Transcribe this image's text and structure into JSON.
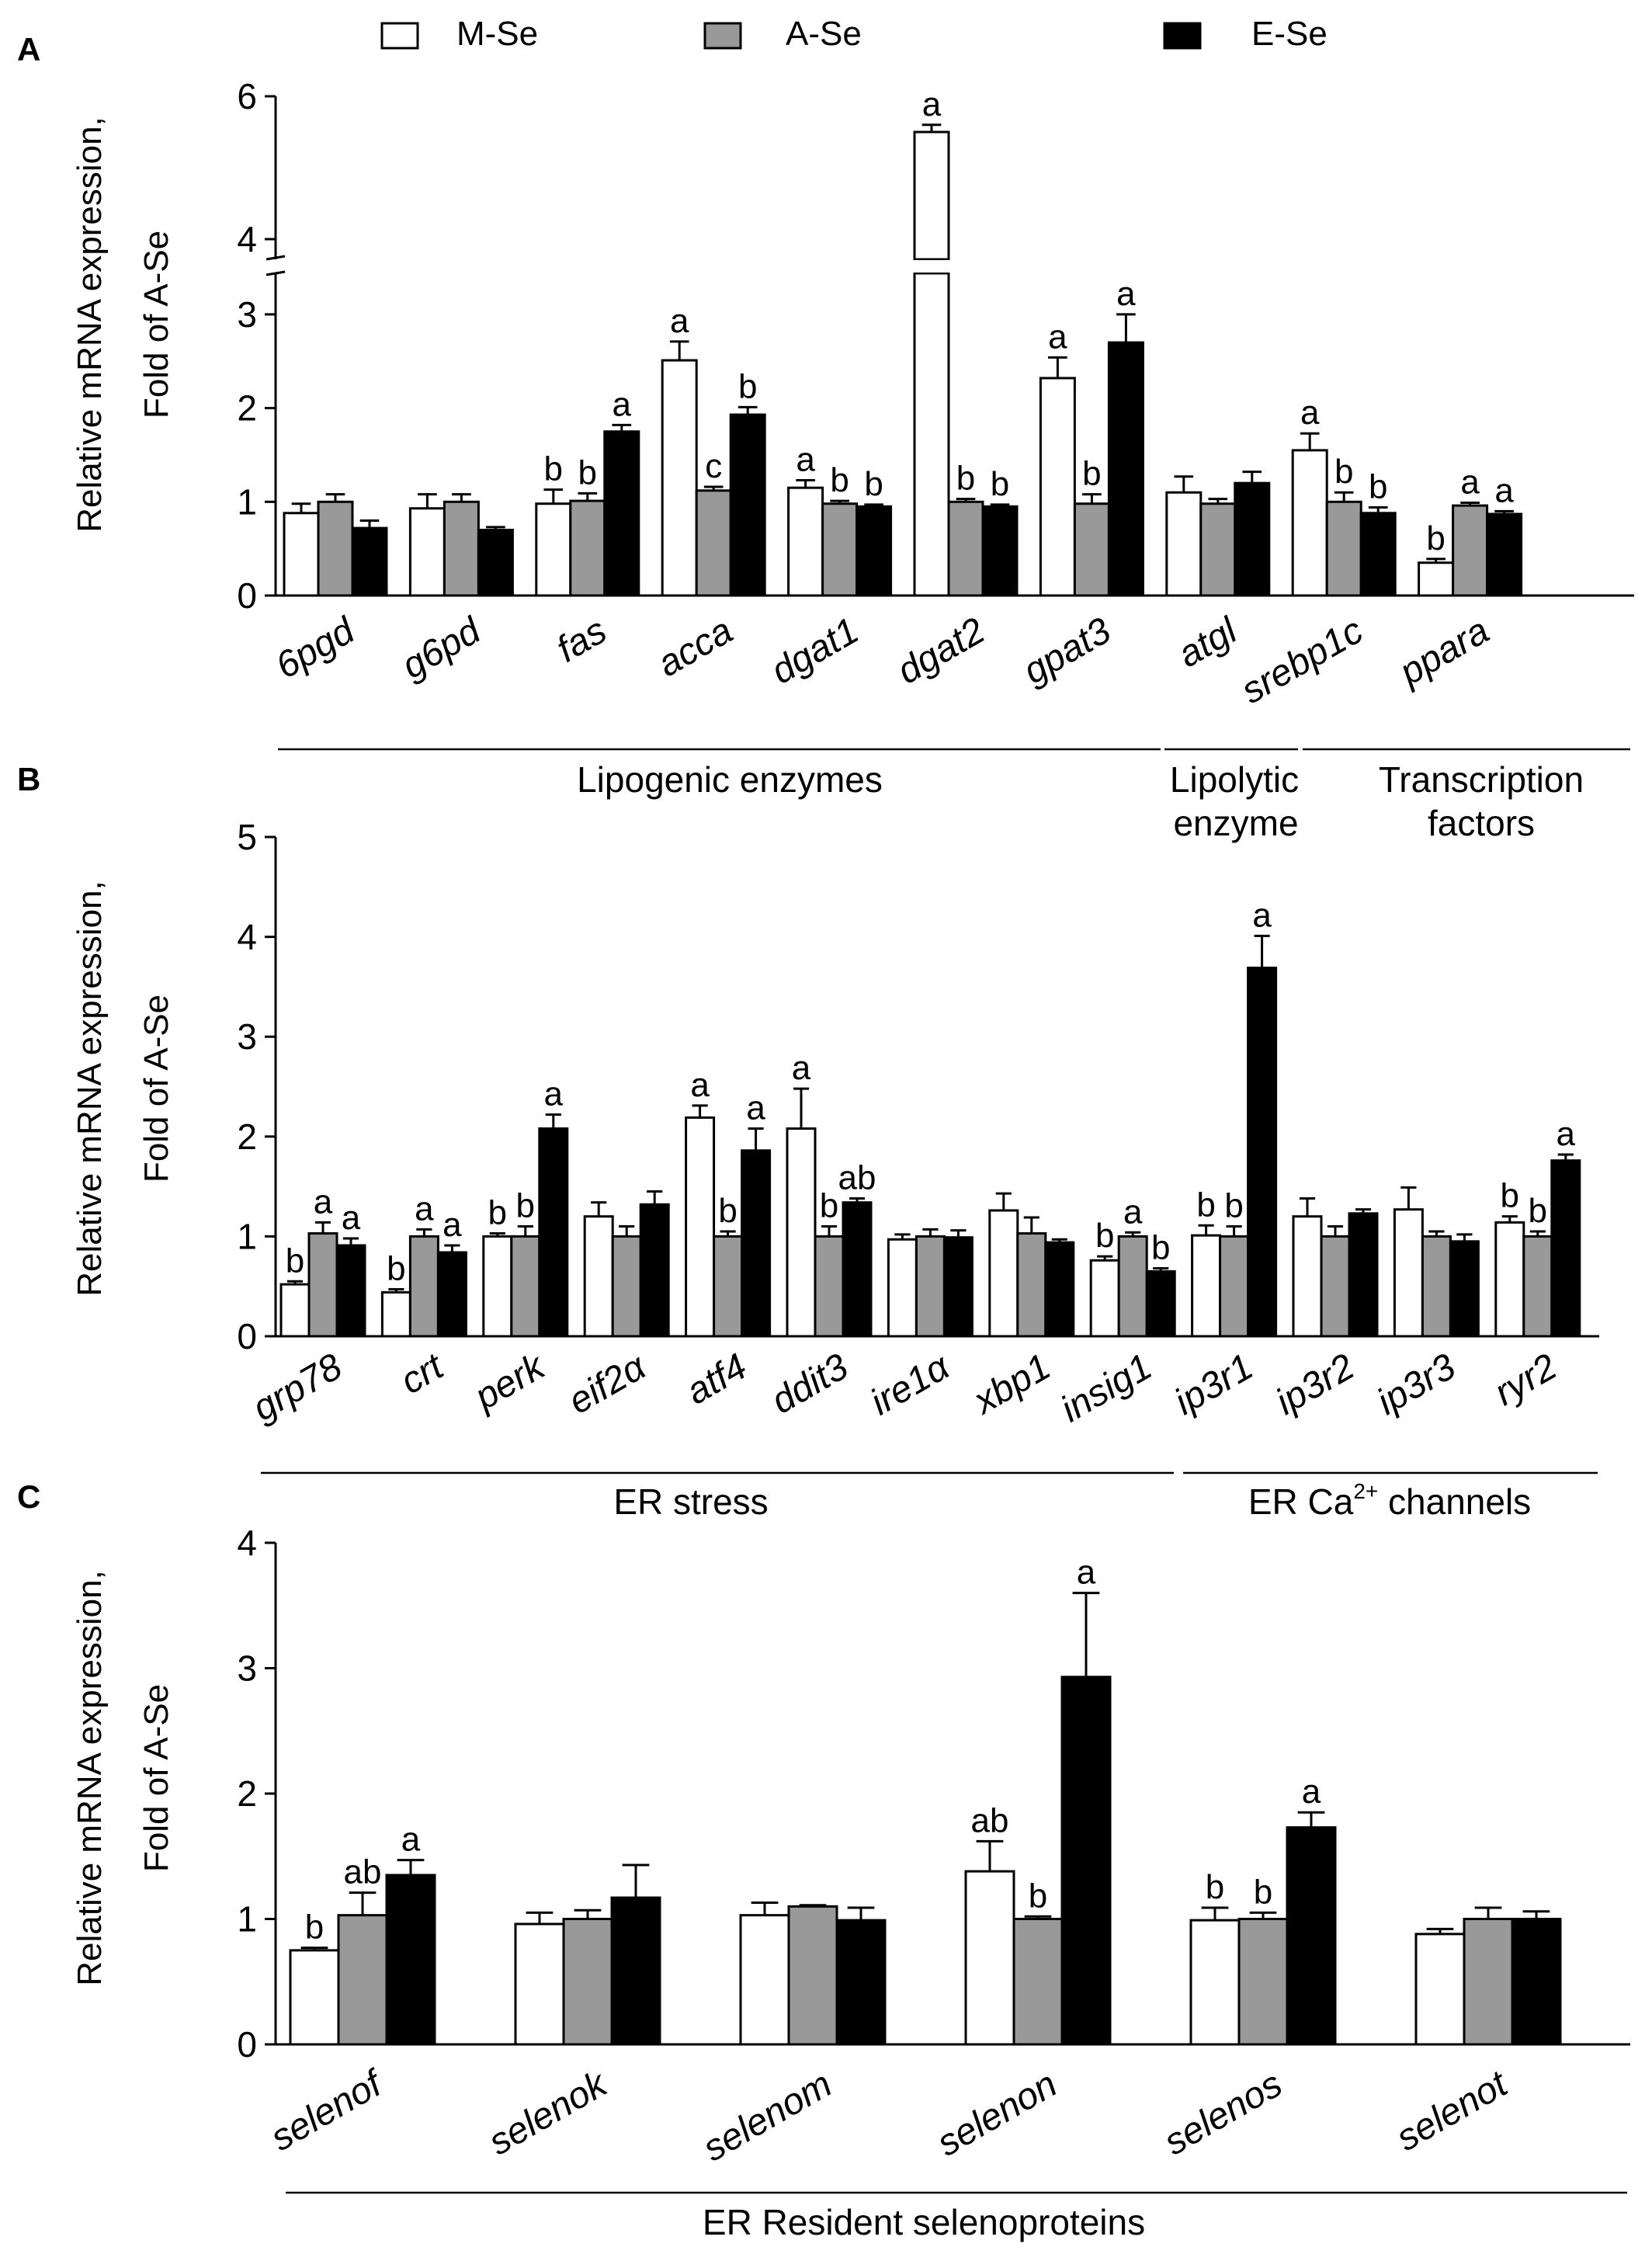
{
  "legend": {
    "items": [
      {
        "label": "M-Se",
        "color": "#ffffff"
      },
      {
        "label": "A-Se",
        "color": "#999999"
      },
      {
        "label": "E-Se",
        "color": "#000000"
      }
    ]
  },
  "colors": {
    "M-Se": "#ffffff",
    "A-Se": "#999999",
    "E-Se": "#000000",
    "stroke": "#000000"
  },
  "chart_data": [
    {
      "panel": "A",
      "type": "bar",
      "ylabel_lines": [
        "Relative mRNA expression,",
        "Fold of A-Se"
      ],
      "broken_axis": true,
      "ylim": [
        0,
        6
      ],
      "yticks": [
        "0",
        "1",
        "2",
        "3",
        "4",
        "6"
      ],
      "categories": [
        "6pgd",
        "g6pd",
        "fas",
        "acca",
        "dgat1",
        "dgat2",
        "gpat3",
        "atgl",
        "srebp1c",
        "ppara"
      ],
      "series": [
        {
          "name": "M-Se",
          "values": [
            0.88,
            0.93,
            0.98,
            2.51,
            1.15,
            5.5,
            2.32,
            1.1,
            1.55,
            0.35
          ],
          "errors": [
            0.1,
            0.15,
            0.15,
            0.2,
            0.08,
            0.1,
            0.22,
            0.17,
            0.18,
            0.04
          ],
          "labels": [
            "",
            "",
            "b",
            "a",
            "a",
            "a",
            "a",
            "",
            "a",
            "b"
          ]
        },
        {
          "name": "A-Se",
          "values": [
            1.0,
            1.0,
            1.01,
            1.12,
            0.98,
            1.0,
            0.98,
            0.98,
            1.0,
            0.96
          ],
          "errors": [
            0.08,
            0.08,
            0.08,
            0.04,
            0.03,
            0.03,
            0.1,
            0.05,
            0.1,
            0.03
          ],
          "labels": [
            "",
            "",
            "b",
            "c",
            "b",
            "b",
            "b",
            "",
            "b",
            "a"
          ]
        },
        {
          "name": "E-Se",
          "values": [
            0.72,
            0.7,
            1.75,
            1.93,
            0.95,
            0.95,
            2.7,
            1.2,
            0.88,
            0.87
          ],
          "errors": [
            0.08,
            0.03,
            0.07,
            0.08,
            0.02,
            0.02,
            0.3,
            0.12,
            0.06,
            0.03
          ],
          "labels": [
            "",
            "",
            "a",
            "b",
            "b",
            "b",
            "a",
            "",
            "b",
            "a"
          ]
        }
      ],
      "groups": [
        {
          "label_lines": [
            "Lipogenic enzymes"
          ]
        },
        {
          "label_lines": [
            "Lipolytic",
            "enzyme"
          ]
        },
        {
          "label_lines": [
            "Transcription",
            "factors"
          ]
        }
      ]
    },
    {
      "panel": "B",
      "type": "bar",
      "ylabel_lines": [
        "Relative mRNA expression,",
        "Fold of A-Se"
      ],
      "ylim": [
        0,
        5
      ],
      "yticks": [
        "0",
        "1",
        "2",
        "3",
        "4",
        "5"
      ],
      "categories": [
        "grp78",
        "crt",
        "perk",
        "eif2α",
        "atf4",
        "ddit3",
        "ire1α",
        "xbp1",
        "insig1",
        "ip3r1",
        "ip3r2",
        "ip3r3",
        "ryr2"
      ],
      "series": [
        {
          "name": "M-Se",
          "values": [
            0.52,
            0.44,
            1.0,
            1.2,
            2.19,
            2.08,
            0.97,
            1.26,
            0.76,
            1.01,
            1.2,
            1.27,
            1.14
          ],
          "errors": [
            0.03,
            0.03,
            0.03,
            0.14,
            0.12,
            0.4,
            0.05,
            0.17,
            0.04,
            0.1,
            0.18,
            0.22,
            0.06
          ],
          "labels": [
            "b",
            "b",
            "b",
            "",
            "a",
            "a",
            "",
            "",
            "b",
            "b",
            "",
            "",
            "b"
          ]
        },
        {
          "name": "A-Se",
          "values": [
            1.03,
            1.0,
            1.0,
            1.0,
            1.0,
            1.0,
            1.0,
            1.03,
            1.0,
            1.0,
            1.0,
            1.0,
            1.0
          ],
          "errors": [
            0.11,
            0.07,
            0.1,
            0.1,
            0.05,
            0.1,
            0.07,
            0.16,
            0.04,
            0.1,
            0.1,
            0.05,
            0.05
          ],
          "labels": [
            "a",
            "a",
            "b",
            "",
            "b",
            "b",
            "",
            "",
            "a",
            "b",
            "",
            "",
            "b"
          ]
        },
        {
          "name": "E-Se",
          "values": [
            0.91,
            0.84,
            2.08,
            1.32,
            1.86,
            1.34,
            0.99,
            0.94,
            0.65,
            3.69,
            1.23,
            0.95,
            1.76
          ],
          "errors": [
            0.07,
            0.07,
            0.14,
            0.13,
            0.22,
            0.04,
            0.07,
            0.03,
            0.03,
            0.32,
            0.04,
            0.07,
            0.06
          ],
          "labels": [
            "a",
            "a",
            "a",
            "",
            "a",
            "ab",
            "",
            "",
            "b",
            "a",
            "",
            "",
            "a"
          ]
        }
      ],
      "groups": [
        {
          "label_lines": [
            "ER stress"
          ]
        },
        {
          "label_lines": [
            "ER Ca",
            "2+",
            " channels"
          ]
        }
      ]
    },
    {
      "panel": "C",
      "type": "bar",
      "ylabel_lines": [
        "Relative mRNA expression,",
        "Fold of A-Se"
      ],
      "ylim": [
        0,
        4
      ],
      "yticks": [
        "0",
        "1",
        "2",
        "3",
        "4"
      ],
      "categories": [
        "selenof",
        "selenok",
        "selenom",
        "selenon",
        "selenos",
        "selenot"
      ],
      "series": [
        {
          "name": "M-Se",
          "values": [
            0.75,
            0.96,
            1.03,
            1.38,
            0.99,
            0.88
          ],
          "errors": [
            0.02,
            0.09,
            0.1,
            0.24,
            0.1,
            0.04
          ],
          "labels": [
            "b",
            "",
            "",
            "ab",
            "b",
            ""
          ]
        },
        {
          "name": "A-Se",
          "values": [
            1.03,
            1.0,
            1.1,
            1.0,
            1.0,
            1.0
          ],
          "errors": [
            0.18,
            0.07,
            0.01,
            0.02,
            0.05,
            0.09
          ],
          "labels": [
            "ab",
            "",
            "",
            "b",
            "b",
            ""
          ]
        },
        {
          "name": "E-Se",
          "values": [
            1.35,
            1.17,
            0.99,
            2.93,
            1.73,
            1.0
          ],
          "errors": [
            0.12,
            0.26,
            0.1,
            0.67,
            0.12,
            0.06
          ],
          "labels": [
            "a",
            "",
            "",
            "a",
            "a",
            ""
          ]
        }
      ],
      "groups": [
        {
          "label_lines": [
            "ER Resident selenoproteins"
          ]
        }
      ]
    }
  ]
}
